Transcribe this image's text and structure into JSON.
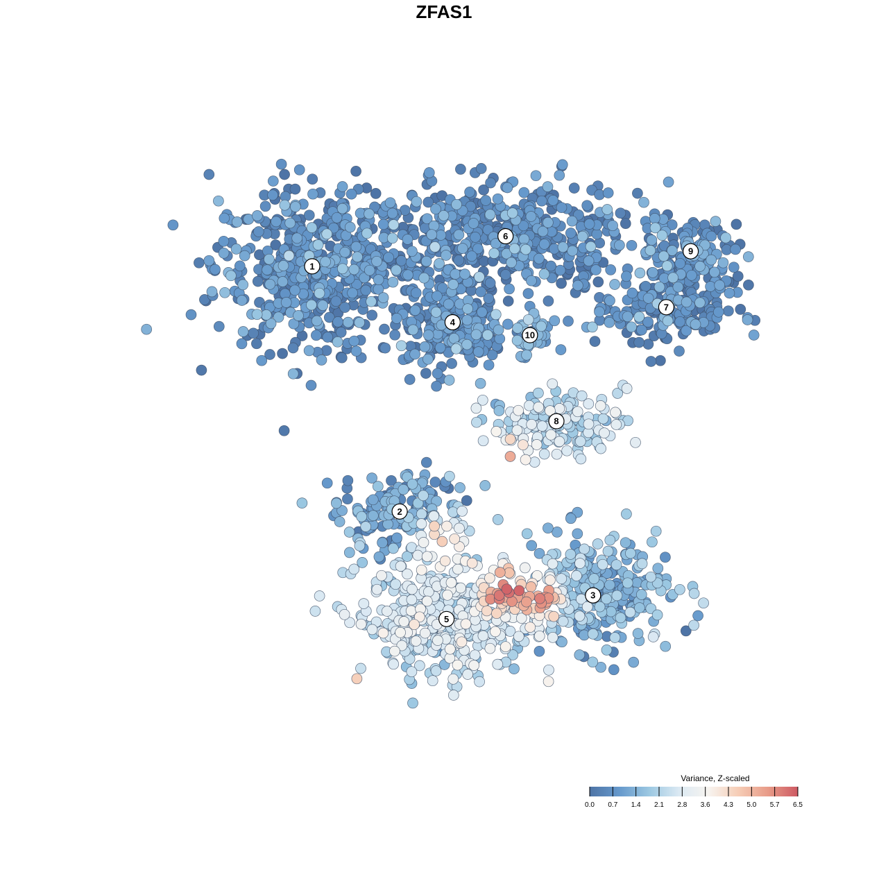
{
  "chart_data": {
    "type": "scatter",
    "title": "ZFAS1",
    "xlabel": "",
    "ylabel": "",
    "grid": false,
    "legend": {
      "title": "Variance, Z-scaled",
      "placement": "bottom-right",
      "ticks": [
        "0.0",
        "0.7",
        "1.4",
        "2.1",
        "2.8",
        "3.6",
        "4.3",
        "5.0",
        "5.7",
        "6.5"
      ],
      "range": [
        0.0,
        6.5
      ]
    },
    "colormap": [
      "#4e74a6",
      "#6699cc",
      "#9cc8e2",
      "#dbe9f3",
      "#f7f4f0",
      "#f6cdb6",
      "#e89b88",
      "#cd5a63"
    ],
    "clusters": [
      {
        "label": "1",
        "x": -7.5,
        "y": 8.1,
        "mean_value": 0.6
      },
      {
        "label": "2",
        "x": -3.2,
        "y": -3.3,
        "mean_value": 1.0
      },
      {
        "label": "3",
        "x": 6.3,
        "y": -7.2,
        "mean_value": 1.4
      },
      {
        "label": "4",
        "x": -0.6,
        "y": 5.5,
        "mean_value": 0.6
      },
      {
        "label": "5",
        "x": -0.9,
        "y": -8.3,
        "mean_value": 2.6
      },
      {
        "label": "6",
        "x": 2.0,
        "y": 9.5,
        "mean_value": 0.5
      },
      {
        "label": "7",
        "x": 9.9,
        "y": 6.2,
        "mean_value": 0.5
      },
      {
        "label": "8",
        "x": 4.5,
        "y": 0.9,
        "mean_value": 2.3
      },
      {
        "label": "9",
        "x": 11.1,
        "y": 8.8,
        "mean_value": 0.7
      },
      {
        "label": "10",
        "x": 3.2,
        "y": 4.9,
        "mean_value": 1.1
      }
    ],
    "hotspots": [
      {
        "x": -1.1,
        "y": -4.6,
        "value": 5.2
      },
      {
        "x": 1.9,
        "y": -6.9,
        "value": 6.2
      },
      {
        "x": 2.1,
        "y": -1.0,
        "value": 6.3
      },
      {
        "x": 3.8,
        "y": -7.4,
        "value": 5.8
      }
    ],
    "xlim": [
      -15.0,
      15.0
    ],
    "ylim": [
      -15.0,
      15.0
    ]
  }
}
